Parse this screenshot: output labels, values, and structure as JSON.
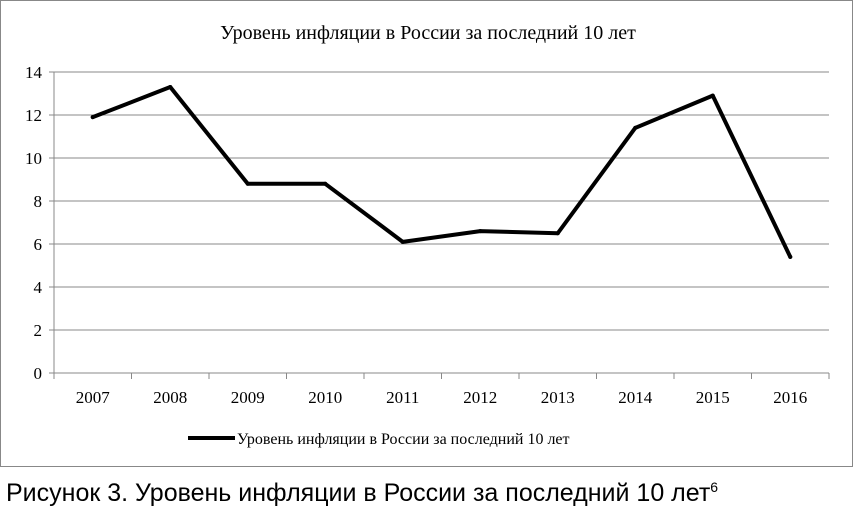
{
  "chart_data": {
    "type": "line",
    "title": "Уровень инфляции в России за последний 10 лет",
    "xlabel": "",
    "ylabel": "",
    "categories": [
      "2007",
      "2008",
      "2009",
      "2010",
      "2011",
      "2012",
      "2013",
      "2014",
      "2015",
      "2016"
    ],
    "series": [
      {
        "name": "Уровень инфляции в России за последний 10 лет",
        "values": [
          11.9,
          13.3,
          8.8,
          8.8,
          6.1,
          6.6,
          6.5,
          11.4,
          12.9,
          5.4
        ],
        "color": "#000000"
      }
    ],
    "ylim": [
      0,
      14
    ],
    "yticks": [
      "0",
      "2",
      "4",
      "6",
      "8",
      "10",
      "12",
      "14"
    ],
    "grid": true,
    "legend_position": "bottom"
  },
  "caption": {
    "text": "Рисунок 3. Уровень инфляции в России за последний 10 лет",
    "footnote": "6"
  }
}
